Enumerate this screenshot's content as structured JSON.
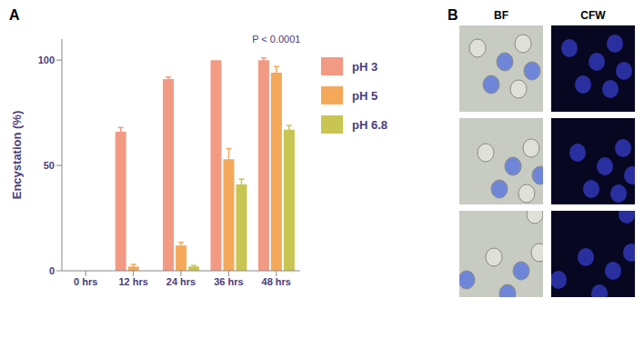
{
  "chart_data": {
    "type": "bar",
    "categories": [
      "0 hrs",
      "12 hrs",
      "24 hrs",
      "36 hrs",
      "48 hrs"
    ],
    "series": [
      {
        "name": "pH 3",
        "color": "#f29a84",
        "values": [
          0,
          66,
          91,
          100,
          100
        ],
        "errors": [
          0,
          2,
          1,
          0,
          1
        ]
      },
      {
        "name": "pH 5",
        "color": "#f5a85a",
        "values": [
          0,
          2,
          12,
          53,
          94
        ],
        "errors": [
          0,
          1,
          1.5,
          5,
          3
        ]
      },
      {
        "name": "pH 6.8",
        "color": "#c9c552",
        "values": [
          0,
          0,
          2,
          41,
          67
        ],
        "errors": [
          0,
          0,
          0.5,
          2.5,
          2
        ]
      }
    ],
    "ylabel": "Encystation (%)",
    "ylim": [
      0,
      110
    ],
    "yticks": [
      0,
      50,
      100
    ],
    "grid": false,
    "legend": "right",
    "annotations": [
      {
        "text": "P < 0.0001",
        "x": "48 hrs"
      }
    ]
  },
  "panel_labels": [
    "A",
    "B"
  ],
  "image_columns": [
    "BF",
    "CFW"
  ]
}
